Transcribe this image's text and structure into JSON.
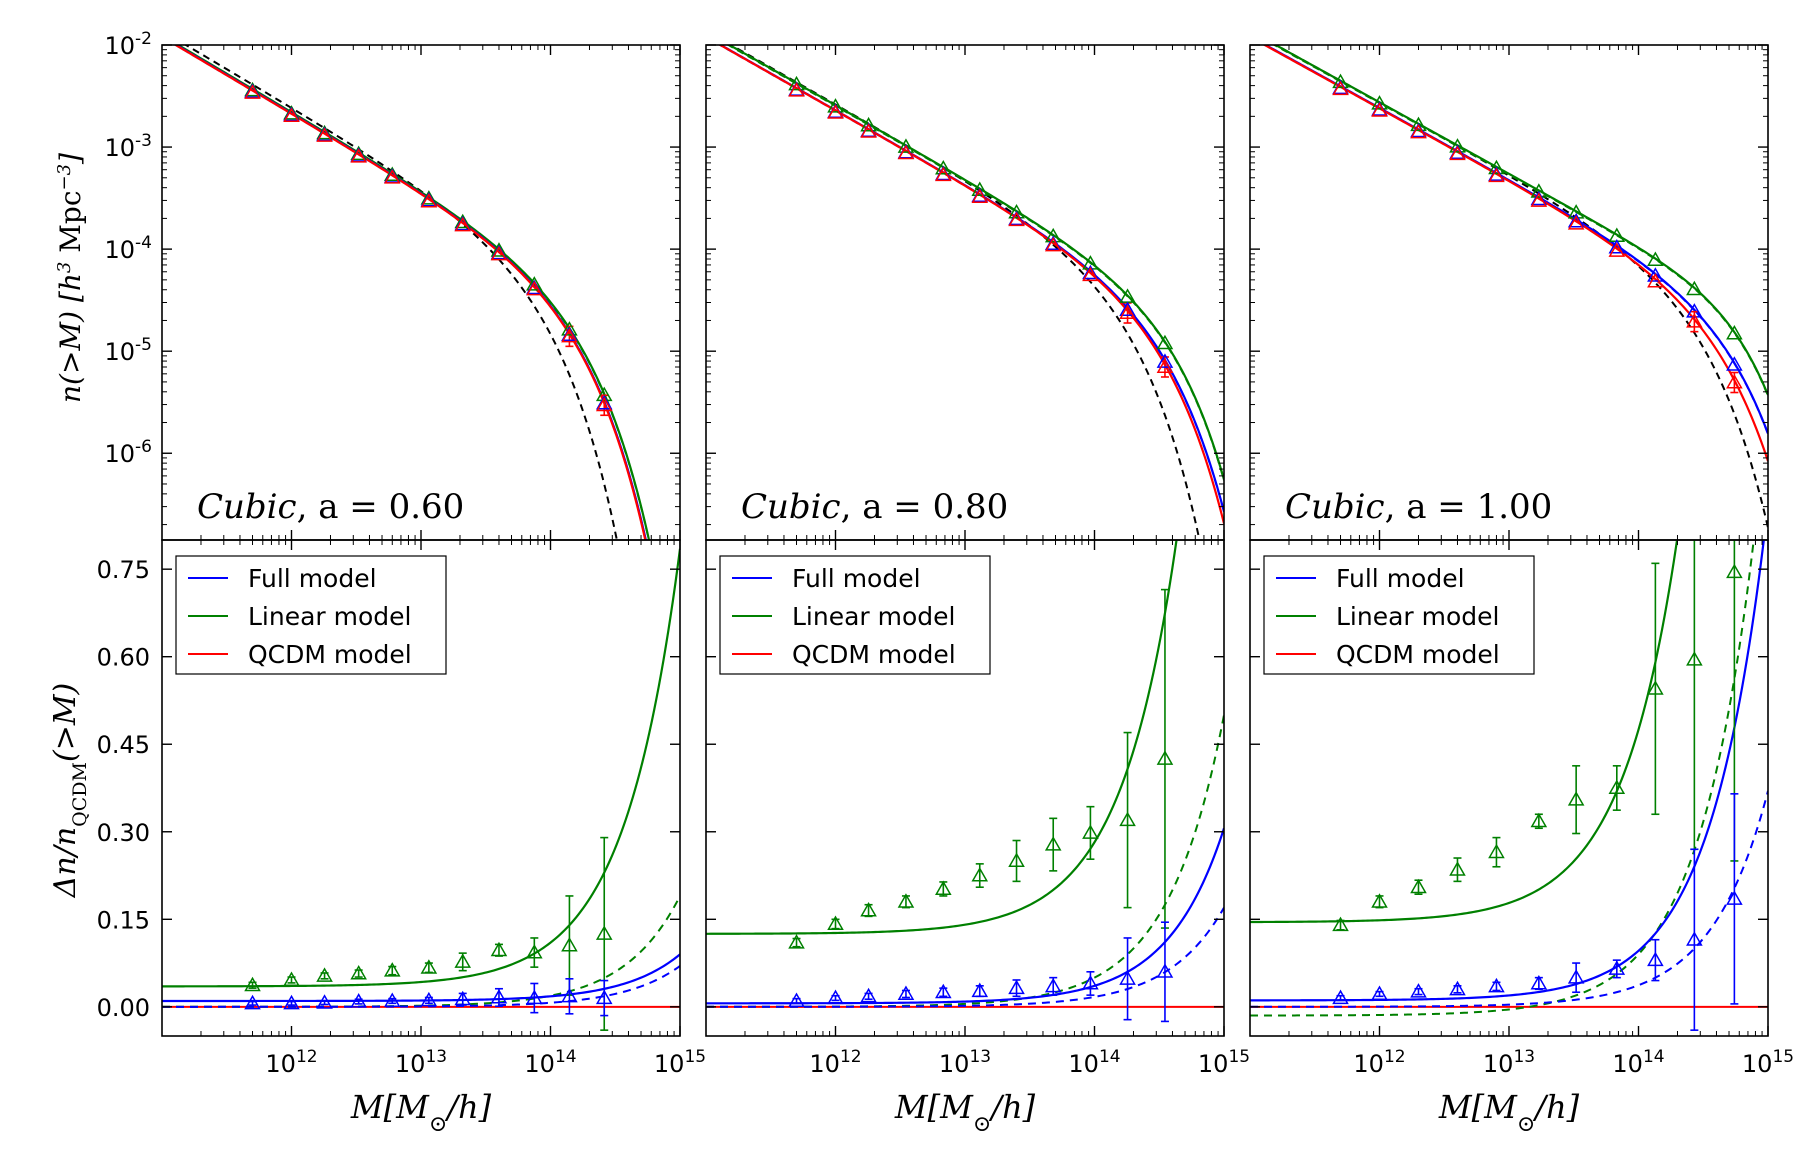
{
  "chart_data": {
    "type": "line",
    "title": "",
    "xlabel_parts": {
      "main": "M[M",
      "sub": "⊙",
      "tail": "/h]"
    },
    "x_tick_labels": [
      {
        "value": 1000000000000.0,
        "base": "10",
        "exp": "12"
      },
      {
        "value": 10000000000000.0,
        "base": "10",
        "exp": "13"
      },
      {
        "value": 100000000000000.0,
        "base": "10",
        "exp": "14"
      },
      {
        "value": 1000000000000000.0,
        "base": "10",
        "exp": "15"
      }
    ],
    "top_ylabel": {
      "pre": "n(>M)  [h",
      "exp": "3",
      "mid": " Mpc",
      "exp2": "−3",
      "post": "]"
    },
    "bottom_ylabel": {
      "pre": "Δn/n",
      "sub": "QCDM",
      "post": "(>M)"
    },
    "top_y_tick_labels": [
      {
        "value": 0.01,
        "base": "10",
        "exp": "-2"
      },
      {
        "value": 0.001,
        "base": "10",
        "exp": "-3"
      },
      {
        "value": 0.0001,
        "base": "10",
        "exp": "-4"
      },
      {
        "value": 1e-05,
        "base": "10",
        "exp": "-5"
      },
      {
        "value": 1e-06,
        "base": "10",
        "exp": "-6"
      }
    ],
    "bottom_y_tick_labels": [
      "0.00",
      "0.15",
      "0.30",
      "0.45",
      "0.60",
      "0.75"
    ],
    "bottom_y_tick_values": [
      0.0,
      0.15,
      0.3,
      0.45,
      0.6,
      0.75
    ],
    "xlim": [
      100000000000.0,
      1000000000000000.0
    ],
    "top_ylim_log10": [
      -6.85,
      -2.0
    ],
    "bottom_ylim": [
      -0.05,
      0.8
    ],
    "legend": [
      {
        "label": "Full model",
        "color": "#0000ff"
      },
      {
        "label": "Linear model",
        "color": "#008000"
      },
      {
        "label": "QCDM model",
        "color": "#ff0000"
      }
    ],
    "panels": [
      {
        "annotation_name": "Cubic",
        "annotation_value": ", a = 0.60",
        "mass_function": {
          "logA": 3.6,
          "beta": 0.75,
          "logM0": 12.2,
          "m_star": 110000000000000.0,
          "lcdm": {
            "logA": 3.36,
            "beta": 0.75,
            "logM0": 12.2,
            "m_star": 60000000000000.0
          },
          "points_mass": [
            500000000000.0,
            1000000000000.0,
            1800000000000.0,
            3300000000000.0,
            6000000000000.0,
            11500000000000.0,
            21000000000000.0,
            40000000000000.0,
            75000000000000.0,
            140000000000000.0,
            260000000000000.0
          ]
        },
        "ratio": {
          "linear": {
            "a": 0.035,
            "b": 0.75
          },
          "full": {
            "a": 0.01,
            "b": 0.08
          },
          "linear_dashed": {
            "a": 0.0,
            "b": 0.19
          },
          "full_dashed": {
            "a": 0.0,
            "b": 0.07
          },
          "linear_points": [
            0.037,
            0.046,
            0.053,
            0.057,
            0.062,
            0.067,
            0.077,
            0.097,
            0.093,
            0.105,
            0.125
          ],
          "linear_errors": [
            0.005,
            0.005,
            0.005,
            0.006,
            0.007,
            0.008,
            0.015,
            0.01,
            0.025,
            0.085,
            0.165
          ],
          "full_points": [
            0.006,
            0.006,
            0.007,
            0.009,
            0.01,
            0.011,
            0.013,
            0.016,
            0.015,
            0.018,
            0.015
          ],
          "full_errors": [
            0.003,
            0.003,
            0.003,
            0.004,
            0.004,
            0.005,
            0.01,
            0.015,
            0.025,
            0.03,
            0.03
          ]
        }
      },
      {
        "annotation_name": "Cubic",
        "annotation_value": ", a = 0.80",
        "mass_function": {
          "logA": 3.6,
          "beta": 0.72,
          "logM0": 12.2,
          "m_star": 230000000000000.0,
          "lcdm": {
            "logA": 3.5,
            "beta": 0.72,
            "logM0": 12.2,
            "m_star": 125000000000000.0
          },
          "points_mass": [
            500000000000.0,
            1000000000000.0,
            1800000000000.0,
            3500000000000.0,
            6800000000000.0,
            13000000000000.0,
            25000000000000.0,
            48000000000000.0,
            93000000000000.0,
            180000000000000.0,
            350000000000000.0
          ]
        },
        "ratio": {
          "linear": {
            "a": 0.125,
            "b": 1.57
          },
          "full": {
            "a": 0.006,
            "b": 0.3
          },
          "linear_dashed": {
            "a": 0.0,
            "b": 0.5
          },
          "full_dashed": {
            "a": 0.0,
            "b": 0.17
          },
          "linear_points": [
            0.11,
            0.142,
            0.165,
            0.18,
            0.202,
            0.225,
            0.25,
            0.278,
            0.298,
            0.32,
            0.425
          ],
          "linear_errors": [
            0.007,
            0.008,
            0.01,
            0.01,
            0.012,
            0.02,
            0.035,
            0.045,
            0.045,
            0.15,
            0.29
          ],
          "full_points": [
            0.01,
            0.015,
            0.018,
            0.022,
            0.025,
            0.027,
            0.032,
            0.035,
            0.04,
            0.048,
            0.06
          ],
          "full_errors": [
            0.004,
            0.004,
            0.005,
            0.006,
            0.007,
            0.009,
            0.014,
            0.015,
            0.02,
            0.07,
            0.085
          ]
        }
      },
      {
        "annotation_name": "Cubic",
        "annotation_value": ", a = 1.00",
        "mass_function": {
          "logA": 3.6,
          "beta": 0.7,
          "logM0": 12.2,
          "m_star": 320000000000000.0,
          "lcdm": {
            "logA": 3.55,
            "beta": 0.7,
            "logM0": 12.2,
            "m_star": 210000000000000.0
          },
          "points_mass": [
            500000000000.0,
            1000000000000.0,
            2000000000000.0,
            4000000000000.0,
            8000000000000.0,
            17000000000000.0,
            33000000000000.0,
            68000000000000.0,
            135000000000000.0,
            270000000000000.0,
            550000000000000.0
          ]
        },
        "ratio": {
          "linear": {
            "a": 0.145,
            "b": 3.3
          },
          "full": {
            "a": 0.011,
            "b": 0.85
          },
          "linear_dashed": {
            "a": -0.015,
            "b": 1.05
          },
          "full_dashed": {
            "a": 0.0,
            "b": 0.37
          },
          "linear_points": [
            0.14,
            0.18,
            0.205,
            0.235,
            0.265,
            0.318,
            0.355,
            0.375,
            0.545,
            0.595,
            0.745
          ],
          "linear_errors": [
            0.008,
            0.01,
            0.012,
            0.02,
            0.025,
            0.012,
            0.058,
            0.038,
            0.215,
            0.325,
            0.495
          ],
          "full_points": [
            0.015,
            0.022,
            0.026,
            0.03,
            0.035,
            0.04,
            0.05,
            0.065,
            0.08,
            0.115,
            0.185
          ],
          "full_errors": [
            0.004,
            0.004,
            0.005,
            0.006,
            0.007,
            0.01,
            0.025,
            0.015,
            0.035,
            0.155,
            0.18
          ]
        }
      }
    ]
  }
}
